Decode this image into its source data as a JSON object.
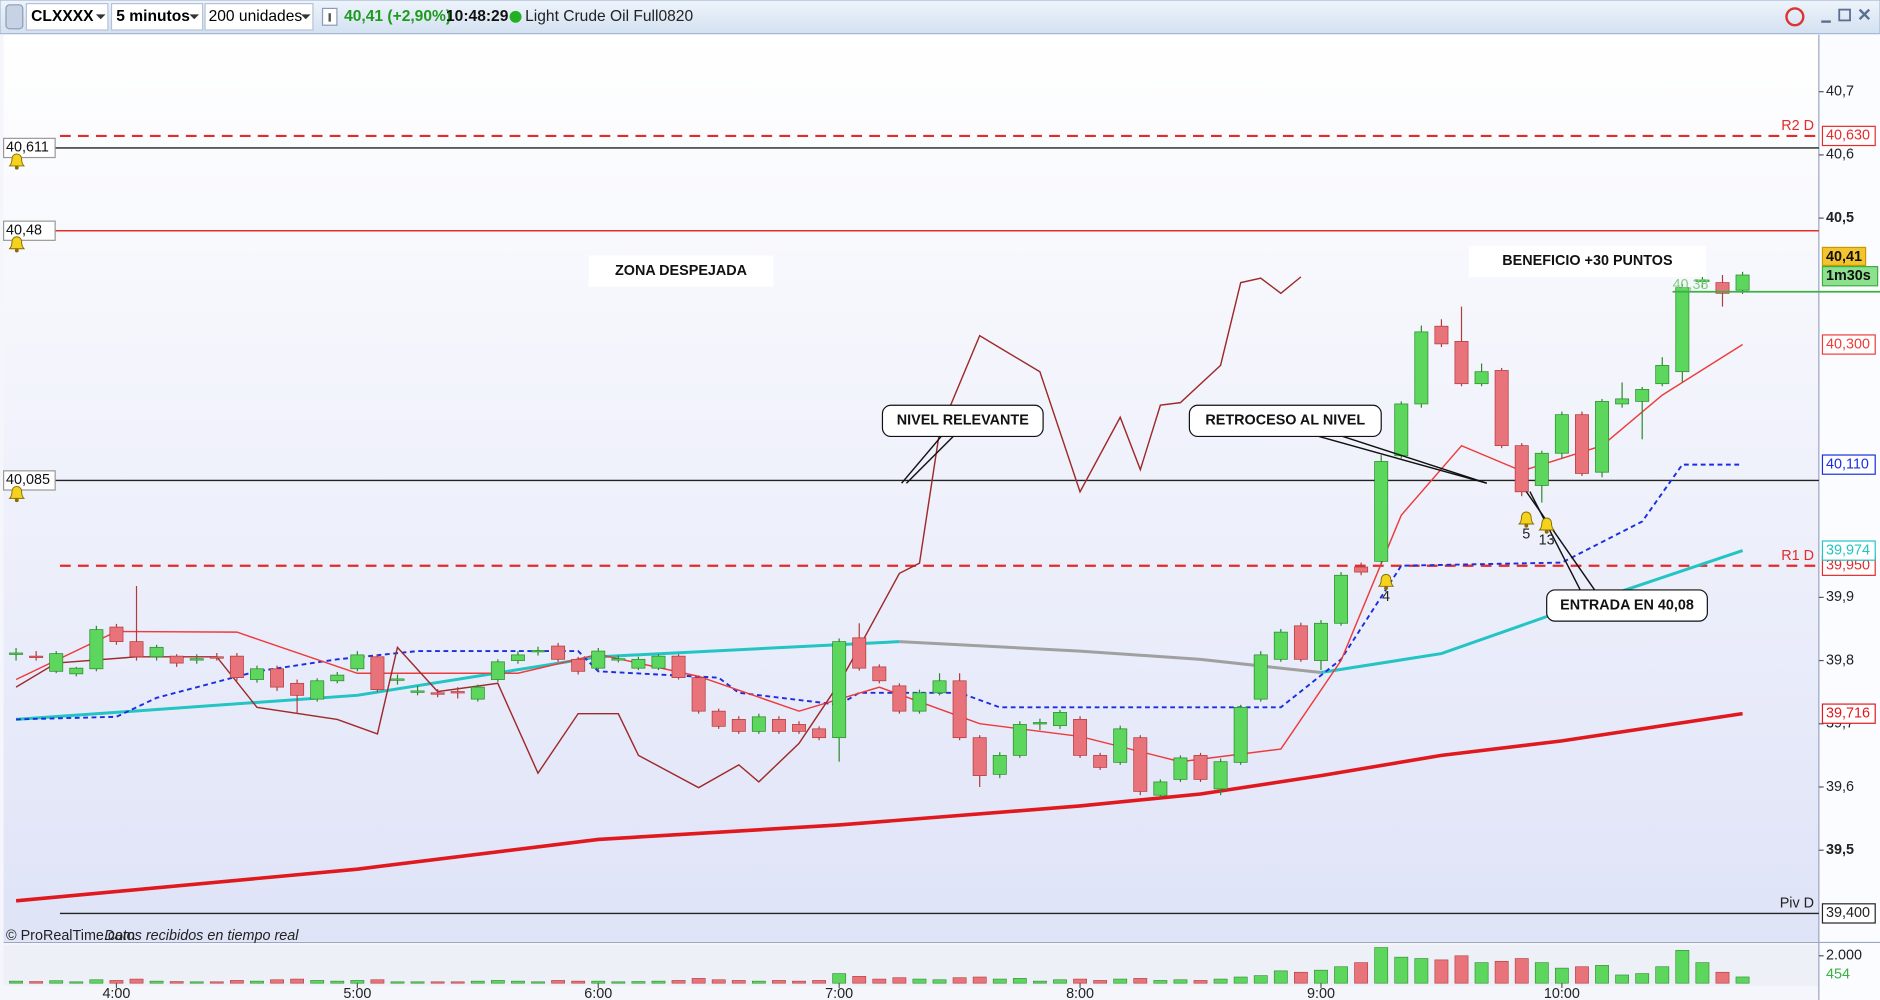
{
  "toolbar": {
    "symbol": "CLXXXX",
    "timeframe": "5 minutos",
    "units": "200 unidades",
    "price": "40,41 (+2,90%)",
    "time": "10:48:29",
    "name": "Light Crude Oil Full0820"
  },
  "footer": {
    "copyright": "© ProRealTime.com",
    "status": "Datos recibidos en tiempo real"
  },
  "chart_data": {
    "type": "candlestick",
    "x": [
      215,
      220,
      225,
      230,
      235,
      240,
      245,
      250,
      255,
      260,
      265,
      270,
      275,
      280,
      285,
      290,
      295,
      300,
      305,
      310,
      315,
      320,
      325,
      330,
      335,
      340,
      345,
      350,
      355,
      360,
      365,
      370,
      375,
      380,
      385,
      390,
      395,
      400,
      405,
      410,
      415,
      420,
      425,
      430,
      435,
      440,
      445,
      450,
      455,
      460,
      465,
      470,
      475,
      480,
      485,
      490,
      495,
      500,
      505,
      510,
      515,
      520,
      525,
      530,
      535,
      540,
      545,
      550,
      555,
      560,
      565,
      570,
      575,
      580,
      585,
      590,
      595,
      600,
      605,
      610,
      615,
      620,
      625,
      630,
      635,
      640,
      645
    ],
    "open": [
      39.81,
      39.807,
      39.783,
      39.779,
      39.787,
      39.853,
      39.83,
      39.806,
      39.807,
      39.802,
      39.806,
      39.807,
      39.77,
      39.787,
      39.764,
      39.739,
      39.768,
      39.787,
      39.806,
      39.77,
      39.751,
      39.749,
      39.751,
      39.739,
      39.77,
      39.8,
      39.815,
      39.823,
      39.802,
      39.788,
      39.802,
      39.788,
      39.788,
      39.807,
      39.773,
      39.72,
      39.707,
      39.688,
      39.707,
      39.699,
      39.692,
      39.678,
      39.836,
      39.79,
      39.76,
      39.72,
      39.749,
      39.768,
      39.678,
      39.62,
      39.65,
      39.701,
      39.697,
      39.707,
      39.65,
      39.639,
      39.678,
      39.587,
      39.612,
      39.65,
      39.597,
      39.639,
      39.739,
      39.802,
      39.855,
      39.8,
      39.859,
      39.948,
      39.957,
      40.124,
      40.206,
      40.329,
      40.305,
      40.238,
      40.259,
      40.14,
      40.077,
      40.128,
      40.189,
      40.098,
      40.206,
      40.21,
      40.238,
      40.257,
      40.401,
      40.398,
      40.386
    ],
    "high": [
      39.82,
      39.815,
      39.815,
      39.79,
      39.855,
      39.858,
      39.918,
      39.825,
      39.81,
      39.81,
      39.812,
      39.812,
      39.792,
      39.792,
      39.77,
      39.772,
      39.782,
      39.815,
      39.81,
      39.778,
      39.76,
      39.755,
      39.758,
      39.762,
      39.802,
      39.815,
      39.822,
      39.828,
      39.806,
      39.82,
      39.808,
      39.806,
      39.81,
      39.81,
      39.776,
      39.724,
      39.712,
      39.716,
      39.712,
      39.704,
      39.696,
      39.835,
      39.859,
      39.794,
      39.764,
      39.754,
      39.78,
      39.78,
      39.682,
      39.655,
      39.704,
      39.708,
      39.722,
      39.712,
      39.654,
      39.697,
      39.682,
      39.612,
      39.65,
      39.654,
      39.645,
      39.73,
      39.815,
      39.85,
      39.86,
      39.864,
      39.94,
      39.955,
      40.125,
      40.21,
      40.33,
      40.34,
      40.36,
      40.27,
      40.263,
      40.144,
      40.132,
      40.194,
      40.194,
      40.214,
      40.24,
      40.233,
      40.28,
      40.396,
      40.42,
      40.41,
      40.415
    ],
    "low": [
      39.8,
      39.8,
      39.78,
      39.775,
      39.783,
      39.825,
      39.8,
      39.8,
      39.79,
      39.795,
      39.8,
      39.768,
      39.765,
      39.752,
      39.716,
      39.735,
      39.764,
      39.783,
      39.75,
      39.762,
      39.745,
      39.742,
      39.74,
      39.735,
      39.766,
      39.795,
      39.808,
      39.798,
      39.778,
      39.784,
      39.797,
      39.785,
      39.785,
      39.77,
      39.716,
      39.692,
      39.684,
      39.684,
      39.684,
      39.684,
      39.674,
      39.64,
      39.784,
      39.764,
      39.716,
      39.716,
      39.745,
      39.674,
      39.6,
      39.614,
      39.646,
      39.69,
      39.692,
      39.646,
      39.627,
      39.635,
      39.587,
      39.583,
      39.608,
      39.608,
      39.587,
      39.635,
      39.735,
      39.798,
      39.798,
      39.785,
      39.855,
      39.935,
      39.953,
      40.12,
      40.2,
      40.296,
      40.234,
      40.234,
      40.136,
      40.06,
      40.05,
      40.12,
      40.092,
      40.09,
      40.2,
      40.15,
      40.234,
      40.24,
      40.39,
      40.36,
      40.38
    ],
    "close": [
      39.812,
      39.806,
      39.811,
      39.788,
      39.849,
      39.83,
      39.806,
      39.821,
      39.796,
      39.803,
      39.805,
      39.773,
      39.787,
      39.758,
      39.745,
      39.768,
      39.777,
      39.809,
      39.754,
      39.771,
      39.752,
      39.748,
      39.75,
      39.758,
      39.798,
      39.809,
      39.816,
      39.802,
      39.783,
      39.815,
      39.803,
      39.802,
      39.807,
      39.773,
      39.72,
      39.696,
      39.688,
      39.711,
      39.688,
      39.688,
      39.678,
      39.83,
      39.788,
      39.768,
      39.72,
      39.749,
      39.768,
      39.678,
      39.618,
      39.65,
      39.699,
      39.702,
      39.718,
      39.65,
      39.631,
      39.692,
      39.593,
      39.608,
      39.646,
      39.612,
      39.64,
      39.726,
      39.809,
      39.845,
      39.802,
      39.859,
      39.935,
      39.94,
      40.115,
      40.206,
      40.32,
      40.301,
      40.238,
      40.257,
      40.14,
      40.067,
      40.128,
      40.189,
      40.096,
      40.21,
      40.214,
      40.229,
      40.267,
      40.39,
      40.402,
      40.381,
      40.41
    ],
    "volume": [
      150,
      120,
      180,
      100,
      250,
      200,
      300,
      150,
      120,
      100,
      100,
      200,
      150,
      250,
      300,
      200,
      150,
      200,
      250,
      100,
      100,
      100,
      100,
      150,
      200,
      150,
      100,
      200,
      150,
      150,
      100,
      120,
      150,
      200,
      350,
      250,
      200,
      150,
      200,
      150,
      200,
      700,
      500,
      300,
      400,
      300,
      250,
      400,
      450,
      300,
      350,
      150,
      250,
      300,
      200,
      300,
      350,
      200,
      250,
      200,
      300,
      450,
      550,
      900,
      800,
      950,
      1200,
      1500,
      2600,
      1900,
      1800,
      1700,
      2000,
      1500,
      1600,
      1800,
      1500,
      1100,
      1200,
      1300,
      600,
      700,
      1200,
      2400,
      1500,
      800,
      454
    ],
    "volume_last_label": "454",
    "up_color": "#5cd65c",
    "down_color": "#e8737a",
    "xlim": [
      211,
      664
    ],
    "xticks": [
      {
        "value": 240,
        "label": "4:00"
      },
      {
        "value": 300,
        "label": "5:00"
      },
      {
        "value": 360,
        "label": "6:00"
      },
      {
        "value": 420,
        "label": "7:00"
      },
      {
        "value": 480,
        "label": "8:00"
      },
      {
        "value": 540,
        "label": "9:00"
      },
      {
        "value": 600,
        "label": "10:00"
      }
    ],
    "ylim": [
      39.356,
      40.79
    ],
    "yticks": [
      {
        "value": 40.7,
        "label": "40,7"
      },
      {
        "value": 40.6,
        "label": "40,6"
      },
      {
        "value": 40.5,
        "label": "40,5"
      },
      {
        "value": 39.9,
        "label": "39,9"
      },
      {
        "value": 39.8,
        "label": "39,8"
      },
      {
        "value": 39.7,
        "label": "39,7"
      },
      {
        "value": 39.6,
        "label": "39,6"
      },
      {
        "value": 39.5,
        "label": "39,5"
      }
    ],
    "vlim": [
      0,
      2800
    ],
    "vticks": [
      {
        "value": 2000,
        "label": "2.000"
      }
    ],
    "lines": [
      {
        "color": "#e0191e",
        "width": 3,
        "dash": false,
        "x": [
          215,
          300,
          360,
          420,
          480,
          510,
          540,
          570,
          600,
          645
        ],
        "values": [
          39.42,
          39.47,
          39.517,
          39.54,
          39.57,
          39.589,
          39.618,
          39.65,
          39.673,
          39.716
        ],
        "value_label": "39,716"
      },
      {
        "color": "#22c4c4",
        "width": 2.5,
        "dash": false,
        "x": [
          215,
          300,
          360,
          435,
          490,
          540,
          570,
          600,
          645
        ],
        "values": [
          39.707,
          39.745,
          39.806,
          39.83,
          null,
          39.781,
          39.811,
          39.878,
          39.974
        ],
        "value_label": "39,974"
      },
      {
        "color": "#a0a0a0",
        "width": 2.5,
        "dash": false,
        "x": [
          435,
          480,
          510,
          540
        ],
        "values": [
          39.83,
          39.815,
          39.802,
          39.781
        ]
      },
      {
        "color": "#1a2ee0",
        "width": 1.6,
        "dash": true,
        "x": [
          215,
          240,
          250,
          275,
          295,
          315,
          355,
          360,
          390,
          395,
          420,
          425,
          450,
          460,
          530,
          545,
          560,
          600,
          620,
          630,
          645
        ],
        "values": [
          39.707,
          39.711,
          39.741,
          39.783,
          39.802,
          39.815,
          39.815,
          39.783,
          39.773,
          39.749,
          39.73,
          39.749,
          39.749,
          39.726,
          39.726,
          39.802,
          39.95,
          39.955,
          40.02,
          40.11,
          40.11
        ],
        "value_label": "40,110"
      },
      {
        "color": "#ee3b3b",
        "width": 1.2,
        "dash": false,
        "x": [
          215,
          240,
          270,
          300,
          340,
          360,
          385,
          410,
          430,
          455,
          480,
          505,
          530,
          545,
          560,
          575,
          590,
          610,
          625,
          645
        ],
        "values": [
          39.77,
          39.846,
          39.845,
          39.78,
          39.78,
          39.81,
          39.775,
          39.72,
          39.758,
          39.7,
          39.68,
          39.64,
          39.66,
          39.8,
          40.03,
          40.14,
          40.1,
          40.14,
          40.22,
          40.3
        ],
        "value_label": "40,300"
      },
      {
        "color": "#9e2a2a",
        "width": 1.2,
        "dash": false,
        "x": [
          215,
          225,
          245,
          265,
          275,
          295,
          305,
          310,
          320,
          335,
          345,
          355,
          365,
          370,
          385,
          395,
          400,
          410,
          420,
          425,
          435,
          440,
          445,
          455,
          460,
          470,
          480,
          490,
          495,
          500,
          505,
          515,
          520,
          525,
          530,
          535
        ],
        "values": [
          39.758,
          39.796,
          39.806,
          39.806,
          39.726,
          39.707,
          39.684,
          39.821,
          39.751,
          39.764,
          39.622,
          39.716,
          39.716,
          39.65,
          39.599,
          39.635,
          39.608,
          39.669,
          39.764,
          39.821,
          39.938,
          39.954,
          40.162,
          40.314,
          40.295,
          40.257,
          40.067,
          40.185,
          40.102,
          40.204,
          40.208,
          40.267,
          40.398,
          40.405,
          40.381,
          40.407
        ]
      }
    ],
    "levels": [
      {
        "value": 40.63,
        "label": "40,630",
        "name": "R2 D",
        "color": "#e32b2b",
        "dash": true,
        "label_side": "right"
      },
      {
        "value": 40.611,
        "label": "40,611",
        "color": "#222222",
        "dash": false,
        "label_side": "left",
        "alert": true
      },
      {
        "value": 40.48,
        "label": "40,48",
        "color": "#e32b2b",
        "dash": false,
        "label_side": "left",
        "alert": true
      },
      {
        "value": 40.085,
        "label": "40,085",
        "color": "#222222",
        "dash": false,
        "label_side": "left",
        "alert": true
      },
      {
        "value": 39.95,
        "label": "39,950",
        "name": "R1 D",
        "color": "#e32b2b",
        "dash": true,
        "label_side": "right"
      },
      {
        "value": 39.4,
        "label": "39,400",
        "name": "Piv D",
        "color": "#222222",
        "dash": false,
        "label_side": "right"
      }
    ],
    "last": {
      "value": 40.41,
      "label": "40,41",
      "countdown": "1m30s",
      "color": "#3cb043"
    },
    "annotations": [
      {
        "text": "ZONA DESPEJADA"
      },
      {
        "text": "BENEFICIO +30 PUNTOS"
      },
      {
        "text": "NIVEL RELEVANTE"
      },
      {
        "text": "RETROCESO AL NIVEL"
      },
      {
        "text": "ENTRADA EN 40,08"
      },
      {
        "text": "40,38"
      }
    ],
    "alert_markers": [
      {
        "label": "4"
      },
      {
        "label": "5"
      },
      {
        "label": "13"
      }
    ]
  }
}
